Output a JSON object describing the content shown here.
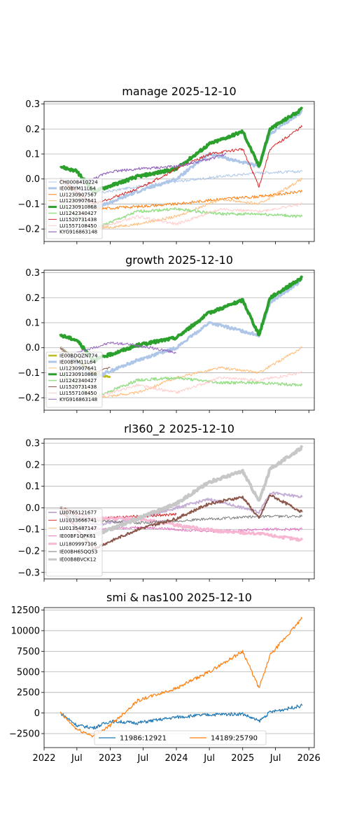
{
  "chart_data": [
    {
      "type": "line",
      "title": "manage 2025-12-10",
      "x_range": [
        "2022-01-01",
        "2026-01-31"
      ],
      "ylim": [
        -0.25,
        0.31
      ],
      "yticks": [
        -0.2,
        -0.1,
        0.0,
        0.1,
        0.2,
        0.3
      ],
      "ytick_labels": [
        "−0.2",
        "−0.1",
        "0.0",
        "0.1",
        "0.2",
        "0.3"
      ],
      "grid": "horizontal",
      "legend_position": "lower-left",
      "series": [
        {
          "name": "CH0008410224",
          "color": "#aec7e8",
          "x": [
            "2022-04-01",
            "2022-10-01",
            "2023-06-01",
            "2024-01-01",
            "2024-09-01",
            "2025-04-01",
            "2025-11-25"
          ],
          "values": [
            0.0,
            -0.06,
            -0.03,
            -0.01,
            0.01,
            0.025,
            0.03
          ]
        },
        {
          "name": "IE00BYM11L64",
          "color": "#aec7e8",
          "x": [
            "2022-04-01",
            "2022-10-01",
            "2023-06-01",
            "2024-01-01",
            "2024-07-01",
            "2025-04-01",
            "2025-06-01",
            "2025-11-25"
          ],
          "values": [
            0.0,
            -0.12,
            -0.05,
            0.0,
            0.1,
            0.05,
            0.18,
            0.27
          ]
        },
        {
          "name": "LU1230907567",
          "color": "#ff7f0e",
          "x": [
            "2022-04-01",
            "2022-10-01",
            "2023-06-01",
            "2024-01-01",
            "2024-09-01",
            "2025-04-01",
            "2025-11-25"
          ],
          "values": [
            0.0,
            -0.12,
            -0.11,
            -0.1,
            -0.08,
            -0.07,
            -0.05
          ]
        },
        {
          "name": "LU1230907641",
          "color": "#ffbb78",
          "x": [
            "2022-04-01",
            "2022-10-01",
            "2023-06-01",
            "2024-01-01",
            "2024-09-01",
            "2025-04-01",
            "2025-11-25"
          ],
          "values": [
            0.0,
            -0.2,
            -0.18,
            -0.15,
            -0.08,
            -0.1,
            0.0
          ]
        },
        {
          "name": "LU1230910868",
          "color": "#2ca02c",
          "x": [
            "2022-04-01",
            "2022-07-01",
            "2022-10-01",
            "2023-06-01",
            "2024-01-01",
            "2024-07-01",
            "2025-01-01",
            "2025-04-01",
            "2025-06-01",
            "2025-11-25"
          ],
          "values": [
            0.05,
            0.03,
            -0.05,
            0.01,
            0.04,
            0.14,
            0.19,
            0.05,
            0.2,
            0.28
          ]
        },
        {
          "name": "LU1242340427",
          "color": "#98df8a",
          "x": [
            "2022-04-01",
            "2022-10-01",
            "2023-06-01",
            "2024-01-01",
            "2024-09-01",
            "2025-04-01",
            "2025-11-25"
          ],
          "values": [
            -0.1,
            -0.2,
            -0.13,
            -0.12,
            -0.14,
            -0.14,
            -0.15
          ]
        },
        {
          "name": "LU1520731438",
          "color": "#d62728",
          "x": [
            "2022-04-01",
            "2022-10-01",
            "2023-06-01",
            "2024-01-01",
            "2024-07-01",
            "2025-01-01",
            "2025-04-01",
            "2025-06-01",
            "2025-11-25"
          ],
          "values": [
            0.0,
            -0.1,
            -0.04,
            0.04,
            0.1,
            0.12,
            -0.03,
            0.12,
            0.21
          ]
        },
        {
          "name": "LU1557108450",
          "color": "#ffcccc",
          "x": [
            "2022-04-01",
            "2022-10-01",
            "2023-06-01",
            "2024-01-01",
            "2024-09-01",
            "2025-04-01",
            "2025-11-25"
          ],
          "values": [
            -0.05,
            -0.2,
            -0.15,
            -0.18,
            -0.12,
            -0.13,
            -0.1
          ]
        },
        {
          "name": "KYG916863148",
          "color": "#9467bd",
          "x": [
            "2022-07-01",
            "2022-10-01",
            "2023-01-01",
            "2023-06-01",
            "2024-01-01",
            "2024-07-01",
            "2024-10-01"
          ],
          "values": [
            -0.02,
            0.0,
            0.03,
            0.04,
            0.05,
            0.08,
            0.1
          ]
        }
      ]
    },
    {
      "type": "line",
      "title": "growth 2025-12-10",
      "x_range": [
        "2022-01-01",
        "2026-01-31"
      ],
      "ylim": [
        -0.25,
        0.31
      ],
      "yticks": [
        -0.2,
        -0.1,
        0.0,
        0.1,
        0.2,
        0.3
      ],
      "ytick_labels": [
        "−0.2",
        "−0.1",
        "0.0",
        "0.1",
        "0.2",
        "0.3"
      ],
      "grid": "horizontal",
      "legend_position": "lower-left",
      "series": [
        {
          "name": "IE00BDQZN774",
          "color": "#bcbd22",
          "x": [
            "2022-04-01",
            "2022-07-01",
            "2022-10-01",
            "2023-01-01"
          ],
          "values": [
            0.0,
            -0.05,
            -0.1,
            -0.12
          ]
        },
        {
          "name": "IE00BYM11L64",
          "color": "#aec7e8",
          "x": [
            "2022-04-01",
            "2022-10-01",
            "2023-06-01",
            "2024-01-01",
            "2024-07-01",
            "2025-04-01",
            "2025-06-01",
            "2025-11-25"
          ],
          "values": [
            0.0,
            -0.12,
            -0.05,
            0.0,
            0.1,
            0.05,
            0.18,
            0.27
          ]
        },
        {
          "name": "LU1230907641",
          "color": "#ffbb78",
          "x": [
            "2022-04-01",
            "2022-10-01",
            "2023-06-01",
            "2024-01-01",
            "2024-09-01",
            "2025-04-01",
            "2025-11-25"
          ],
          "values": [
            0.0,
            -0.2,
            -0.18,
            -0.12,
            -0.08,
            -0.1,
            0.0
          ]
        },
        {
          "name": "LU1230910868",
          "color": "#2ca02c",
          "x": [
            "2022-04-01",
            "2022-07-01",
            "2022-10-01",
            "2023-06-01",
            "2024-01-01",
            "2024-07-01",
            "2025-01-01",
            "2025-04-01",
            "2025-06-01",
            "2025-11-25"
          ],
          "values": [
            0.05,
            0.03,
            -0.05,
            0.01,
            0.04,
            0.14,
            0.19,
            0.05,
            0.2,
            0.28
          ]
        },
        {
          "name": "LU1242340427",
          "color": "#98df8a",
          "x": [
            "2022-04-01",
            "2022-10-01",
            "2023-06-01",
            "2024-01-01",
            "2024-09-01",
            "2025-04-01",
            "2025-11-25"
          ],
          "values": [
            -0.1,
            -0.2,
            -0.13,
            -0.12,
            -0.14,
            -0.14,
            -0.15
          ]
        },
        {
          "name": "LU1520731438",
          "color": "#8c564b",
          "x": [
            "2022-04-01",
            "2022-10-01",
            "2023-01-01"
          ],
          "values": [
            0.0,
            -0.1,
            -0.08
          ]
        },
        {
          "name": "LU1557108450",
          "color": "#ffcccc",
          "x": [
            "2022-04-01",
            "2022-10-01",
            "2023-06-01",
            "2024-01-01",
            "2024-09-01",
            "2025-04-01",
            "2025-11-25"
          ],
          "values": [
            -0.05,
            -0.2,
            -0.15,
            -0.18,
            -0.12,
            -0.13,
            -0.1
          ]
        },
        {
          "name": "KYG916863148",
          "color": "#9467bd",
          "x": [
            "2022-07-01",
            "2022-10-01",
            "2023-01-01",
            "2023-06-01",
            "2024-01-01"
          ],
          "values": [
            -0.02,
            0.0,
            0.02,
            0.01,
            -0.02
          ]
        }
      ]
    },
    {
      "type": "line",
      "title": "rl360_2 2025-12-10",
      "x_range": [
        "2022-01-01",
        "2026-01-31"
      ],
      "ylim": [
        -0.33,
        0.32
      ],
      "yticks": [
        -0.3,
        -0.2,
        -0.1,
        0.0,
        0.1,
        0.2,
        0.3
      ],
      "ytick_labels": [
        "−0.3",
        "−0.2",
        "−0.1",
        "0.0",
        "0.1",
        "0.2",
        "0.3"
      ],
      "grid": "horizontal",
      "legend_position": "lower-left",
      "series": [
        {
          "name": "LU0765121677",
          "color": "#c5b0d5",
          "x": [
            "2022-04-01",
            "2022-10-01",
            "2023-06-01",
            "2024-01-01",
            "2024-07-01",
            "2025-04-01",
            "2025-06-01",
            "2025-11-25"
          ],
          "values": [
            0.0,
            -0.08,
            -0.05,
            0.0,
            0.04,
            -0.02,
            0.07,
            0.05
          ]
        },
        {
          "name": "LU1033666741",
          "color": "#d62728",
          "x": [
            "2022-04-01",
            "2022-10-01",
            "2023-06-01",
            "2024-01-01"
          ],
          "values": [
            0.0,
            -0.05,
            -0.04,
            -0.03
          ]
        },
        {
          "name": "LU0135487147",
          "color": "#ffbb78",
          "x": [
            "2022-04-01",
            "2022-10-01",
            "2023-01-01"
          ],
          "values": [
            0.0,
            -0.06,
            -0.05
          ]
        },
        {
          "name": "IE00BF1QPK61",
          "color": "#e377c2",
          "x": [
            "2022-04-01",
            "2022-10-01",
            "2023-06-01",
            "2024-01-01",
            "2024-09-01",
            "2025-04-01",
            "2025-11-25"
          ],
          "values": [
            -0.05,
            -0.1,
            -0.09,
            -0.1,
            -0.11,
            -0.1,
            -0.1
          ]
        },
        {
          "name": "LU1809997106",
          "color": "#f7b6d2",
          "x": [
            "2022-04-01",
            "2022-10-01",
            "2023-06-01",
            "2024-01-01",
            "2024-09-01",
            "2025-04-01",
            "2025-11-25"
          ],
          "values": [
            -0.03,
            -0.05,
            -0.05,
            -0.08,
            -0.11,
            -0.12,
            -0.15
          ]
        },
        {
          "name": "IE00BH65QQ53",
          "color": "#7f7f7f",
          "x": [
            "2022-04-01",
            "2022-10-01",
            "2023-06-01",
            "2024-01-01",
            "2024-09-01",
            "2025-04-01",
            "2025-11-25"
          ],
          "values": [
            -0.02,
            -0.06,
            -0.07,
            -0.06,
            -0.05,
            -0.04,
            -0.04
          ]
        },
        {
          "name": "IE00B8BVCK12",
          "color": "#c7c7c7",
          "x": [
            "2022-04-01",
            "2022-10-01",
            "2023-06-01",
            "2024-01-01",
            "2024-07-01",
            "2025-01-01",
            "2025-04-01",
            "2025-06-01",
            "2025-11-25"
          ],
          "values": [
            0.0,
            -0.13,
            -0.05,
            0.02,
            0.12,
            0.17,
            0.03,
            0.18,
            0.28
          ]
        },
        {
          "name": "",
          "color": "#8c564b",
          "x": [
            "2022-04-01",
            "2022-07-01",
            "2022-10-01",
            "2023-06-01",
            "2024-01-01",
            "2024-07-01",
            "2025-01-01",
            "2025-04-01",
            "2025-06-01",
            "2025-11-25"
          ],
          "values": [
            0.0,
            -0.1,
            -0.19,
            -0.1,
            -0.05,
            0.02,
            0.05,
            -0.05,
            0.06,
            -0.02
          ]
        }
      ]
    },
    {
      "type": "line",
      "title": "smi & nas100 2025-12-10",
      "x_range": [
        "2022-01-01",
        "2026-01-31"
      ],
      "ylim": [
        -4200,
        12800
      ],
      "yticks": [
        -2500,
        0,
        2500,
        5000,
        7500,
        10000,
        12500
      ],
      "ytick_labels": [
        "−2500",
        "0",
        "2500",
        "5000",
        "7500",
        "10000",
        "12500"
      ],
      "xtick_labels": [
        "2022",
        "Jul",
        "2023",
        "Jul",
        "2024",
        "Jul",
        "2025",
        "Jul",
        "2026"
      ],
      "xtick_dates": [
        "2022-01-01",
        "2022-07-01",
        "2023-01-01",
        "2023-07-01",
        "2024-01-01",
        "2024-07-01",
        "2025-01-01",
        "2025-07-01",
        "2026-01-01"
      ],
      "grid": "horizontal",
      "legend_position": "lower-center",
      "series": [
        {
          "name": "11986:12921",
          "color": "#1f77b4",
          "x": [
            "2022-04-01",
            "2022-07-01",
            "2022-10-01",
            "2023-01-01",
            "2023-06-01",
            "2024-01-01",
            "2024-07-01",
            "2025-01-01",
            "2025-04-01",
            "2025-06-01",
            "2025-11-25"
          ],
          "values": [
            0,
            -1500,
            -1800,
            -1000,
            -1200,
            -500,
            -200,
            -100,
            -1000,
            100,
            900
          ]
        },
        {
          "name": "14189:25790",
          "color": "#ff7f0e",
          "x": [
            "2022-04-01",
            "2022-07-01",
            "2022-10-01",
            "2023-01-01",
            "2023-06-01",
            "2024-01-01",
            "2024-07-01",
            "2025-01-01",
            "2025-04-01",
            "2025-06-01",
            "2025-11-25"
          ],
          "values": [
            0,
            -2000,
            -2800,
            -1500,
            1500,
            3000,
            5000,
            7500,
            3000,
            7000,
            11500
          ]
        }
      ]
    }
  ]
}
